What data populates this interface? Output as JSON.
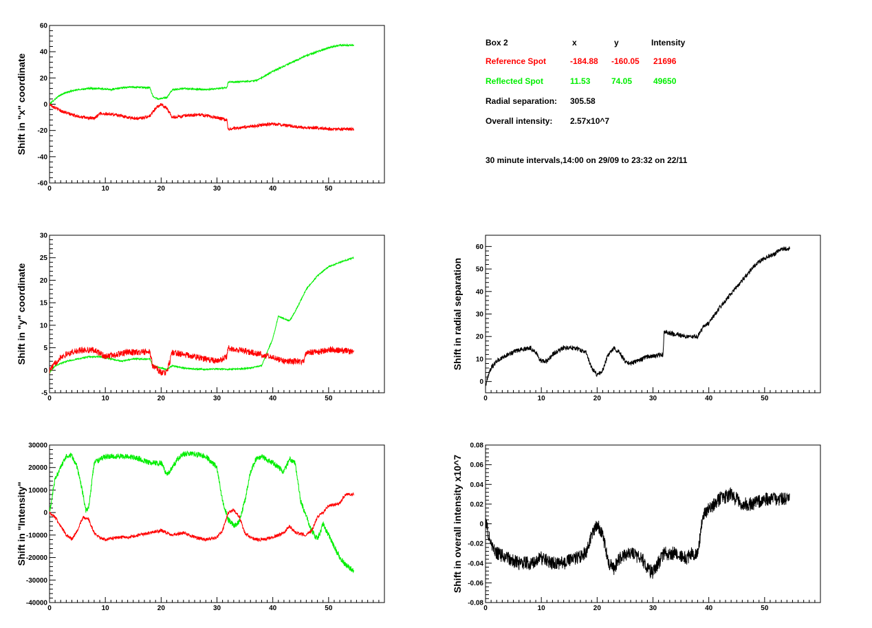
{
  "info": {
    "box_label": "Box 2",
    "col_x": "x",
    "col_y": "y",
    "col_intensity": "Intensity",
    "reference": {
      "label": "Reference Spot",
      "x": "-184.88",
      "y": "-160.05",
      "intensity": "21696"
    },
    "reflected": {
      "label": "Reflected Spot",
      "x": "11.53",
      "y": "74.05",
      "intensity": "49650"
    },
    "radial_label": "Radial separation:",
    "radial_value": "305.58",
    "overall_label": "Overall intensity:",
    "overall_value": "2.57x10^7",
    "interval_text": "30 minute intervals,14:00 on 29/09 to 23:32 on 22/11"
  },
  "colors": {
    "reference": "#ff0000",
    "reflected": "#00ee00",
    "single": "#000000"
  },
  "chart_data": [
    {
      "id": "shift-x",
      "type": "line",
      "ylabel": "Shift in \"x\" coordinate",
      "xlim": [
        0,
        60
      ],
      "ylim": [
        -60,
        60
      ],
      "xticks": [
        0,
        10,
        20,
        30,
        40,
        50
      ],
      "yticks": [
        -60,
        -40,
        -20,
        0,
        20,
        40,
        60
      ],
      "series": [
        {
          "color": "reflected",
          "noise": 0.6,
          "x": [
            0,
            1,
            2,
            3,
            5,
            7,
            9,
            11,
            12,
            14,
            16,
            18,
            18.5,
            19.5,
            21,
            22,
            24,
            26,
            28,
            30,
            31.8,
            32,
            34,
            37,
            38,
            40,
            42,
            44,
            46,
            48,
            50,
            52,
            54.5
          ],
          "y": [
            0,
            4,
            7,
            9,
            11,
            12,
            12,
            11,
            12,
            13,
            13,
            12.5,
            6,
            4,
            5,
            11,
            12,
            11.5,
            11,
            12,
            12.5,
            17,
            17,
            18,
            20,
            25,
            29,
            33,
            37,
            40,
            43,
            45,
            45
          ]
        },
        {
          "color": "reference",
          "noise": 1.2,
          "x": [
            0,
            2,
            4,
            6,
            8,
            9,
            12,
            14,
            16,
            18,
            19,
            20,
            21,
            22,
            24,
            27,
            30,
            31.8,
            32,
            34,
            36,
            38,
            40,
            42,
            44,
            46,
            48,
            50,
            52,
            54.5
          ],
          "y": [
            0,
            -5,
            -8,
            -10,
            -11,
            -7,
            -8,
            -10,
            -11,
            -9,
            -3,
            0,
            -3,
            -10,
            -9,
            -8,
            -10,
            -12,
            -19,
            -18,
            -17,
            -16,
            -15,
            -16,
            -17,
            -18,
            -18,
            -19,
            -19,
            -19
          ]
        }
      ]
    },
    {
      "id": "shift-y",
      "type": "line",
      "ylabel": "Shift in \"y\" coordinate",
      "xlim": [
        0,
        60
      ],
      "ylim": [
        -5,
        30
      ],
      "xticks": [
        0,
        10,
        20,
        30,
        40,
        50
      ],
      "yticks": [
        -5,
        0,
        5,
        10,
        15,
        20,
        25,
        30
      ],
      "series": [
        {
          "color": "reflected",
          "noise": 0.15,
          "x": [
            0,
            1,
            3,
            5,
            7,
            9,
            11,
            13,
            15,
            18,
            18.5,
            20,
            21,
            22,
            24,
            26,
            28,
            30,
            32,
            34,
            36,
            38,
            40,
            41,
            43,
            44,
            46,
            48,
            50,
            52,
            54.5
          ],
          "y": [
            -0.5,
            1,
            2,
            2.5,
            3,
            3,
            2.5,
            2,
            2.5,
            2.5,
            1,
            0.5,
            0.2,
            1,
            0.5,
            0.3,
            0.2,
            0.3,
            0.2,
            0.3,
            0.5,
            1,
            7,
            12,
            11,
            13,
            18,
            21,
            23,
            24,
            25
          ]
        },
        {
          "color": "reference",
          "noise": 0.7,
          "x": [
            0,
            2,
            4,
            6,
            8,
            10,
            12,
            14,
            16,
            18,
            18.5,
            20,
            21,
            22,
            24,
            26,
            28,
            30,
            31.8,
            32,
            34,
            36,
            38,
            40,
            42,
            44,
            45.5,
            46,
            48,
            50,
            52,
            54.5
          ],
          "y": [
            0,
            3,
            4,
            4.5,
            4.5,
            3,
            3.5,
            4,
            4,
            4,
            1,
            -0.5,
            -0.5,
            4,
            3.5,
            3,
            2.5,
            2,
            3,
            5,
            4.5,
            4,
            3.5,
            3,
            2,
            2,
            2,
            4,
            4,
            4.5,
            4.5,
            4
          ]
        }
      ]
    },
    {
      "id": "shift-radial",
      "type": "line",
      "ylabel": "Shift in radial separation",
      "xlim": [
        0,
        60
      ],
      "ylim": [
        -5,
        65
      ],
      "xticks": [
        0,
        10,
        20,
        30,
        40,
        50
      ],
      "yticks": [
        0,
        10,
        20,
        30,
        40,
        50,
        60
      ],
      "series": [
        {
          "color": "single",
          "noise": 1.0,
          "x": [
            0,
            0.5,
            1,
            2,
            4,
            6,
            8,
            9,
            10,
            11,
            12,
            14,
            16,
            18,
            19,
            20,
            21,
            22,
            23,
            24,
            25,
            26,
            28,
            29,
            31.8,
            32,
            34,
            36,
            38,
            39,
            40,
            42,
            44,
            46,
            48,
            50,
            52,
            53,
            54.5
          ],
          "y": [
            -2,
            3,
            6,
            9,
            12,
            14,
            15,
            13,
            9,
            9,
            12,
            15,
            15,
            13,
            6,
            3,
            5,
            12,
            15,
            13,
            9,
            8,
            10,
            11,
            12,
            22,
            21,
            20,
            20,
            24,
            26,
            33,
            39,
            45,
            51,
            55,
            57,
            59,
            59
          ]
        }
      ]
    },
    {
      "id": "shift-intensity",
      "type": "line",
      "ylabel": "Shift in \"Intensity\"",
      "xlim": [
        0,
        60
      ],
      "ylim": [
        -40000,
        30000
      ],
      "xticks": [
        0,
        10,
        20,
        30,
        40,
        50
      ],
      "yticks": [
        -40000,
        -30000,
        -20000,
        -10000,
        0,
        10000,
        20000,
        30000
      ],
      "series": [
        {
          "color": "reflected",
          "noise": 1200,
          "x": [
            0,
            1,
            2,
            3,
            4,
            5,
            6,
            6.5,
            7,
            8,
            10,
            12,
            14,
            16,
            18,
            19,
            20,
            21,
            22,
            23,
            24,
            26,
            28,
            30,
            31,
            32,
            33,
            34,
            35,
            36,
            37,
            38,
            40,
            42,
            43,
            44,
            45,
            46,
            47,
            48,
            49,
            50,
            51,
            52,
            53,
            54.5
          ],
          "y": [
            0,
            15000,
            20000,
            25000,
            25000,
            20000,
            8000,
            1000,
            2000,
            22000,
            25000,
            25000,
            25000,
            24000,
            22000,
            22000,
            22000,
            17000,
            20000,
            24000,
            26000,
            26000,
            25000,
            20000,
            5000,
            -3000,
            -6000,
            -4000,
            5000,
            18000,
            24000,
            25000,
            22000,
            18000,
            24000,
            22000,
            5000,
            -2000,
            -8000,
            -12000,
            -5000,
            -10000,
            -15000,
            -20000,
            -23000,
            -26000
          ]
        },
        {
          "color": "reference",
          "noise": 700,
          "x": [
            0,
            1,
            2,
            3,
            4,
            5,
            6,
            7,
            8,
            9,
            10,
            12,
            14,
            16,
            18,
            20,
            21,
            22,
            24,
            26,
            28,
            30,
            31,
            32,
            33,
            34,
            35,
            36,
            37,
            38,
            40,
            42,
            43,
            44,
            46,
            47,
            48,
            49,
            50,
            52,
            53,
            54.5
          ],
          "y": [
            0,
            -2000,
            -6000,
            -10000,
            -12000,
            -8000,
            -2000,
            -3000,
            -9000,
            -11000,
            -12000,
            -11000,
            -11000,
            -10000,
            -9000,
            -8000,
            -9000,
            -10000,
            -9000,
            -11000,
            -12000,
            -11000,
            -8000,
            0,
            1000,
            -2000,
            -9000,
            -11000,
            -12000,
            -12000,
            -11000,
            -9000,
            -6000,
            -9000,
            -10000,
            -8000,
            -2000,
            0,
            3000,
            4000,
            8000,
            8000
          ]
        }
      ]
    },
    {
      "id": "shift-overall-intensity",
      "type": "line",
      "ylabel": "Shift in overall intensity x10^7",
      "xlim": [
        0,
        60
      ],
      "ylim": [
        -0.08,
        0.08
      ],
      "xticks": [
        0,
        10,
        20,
        30,
        40,
        50
      ],
      "yticks": [
        -0.08,
        -0.06,
        -0.04,
        -0.02,
        0,
        0.02,
        0.04,
        0.06,
        0.08
      ],
      "series": [
        {
          "color": "single",
          "noise": 0.007,
          "x": [
            0,
            0.5,
            1,
            2,
            4,
            6,
            8,
            10,
            12,
            14,
            16,
            18,
            19,
            20,
            21,
            22,
            23,
            24,
            26,
            28,
            29,
            30,
            31,
            32,
            34,
            36,
            37,
            38,
            38.5,
            39,
            40,
            42,
            44,
            46,
            48,
            50,
            52,
            54.5
          ],
          "y": [
            0.005,
            -0.01,
            -0.02,
            -0.03,
            -0.035,
            -0.04,
            -0.04,
            -0.035,
            -0.04,
            -0.04,
            -0.035,
            -0.03,
            -0.01,
            0.0,
            -0.01,
            -0.04,
            -0.045,
            -0.035,
            -0.03,
            -0.035,
            -0.045,
            -0.05,
            -0.04,
            -0.03,
            -0.03,
            -0.035,
            -0.03,
            -0.03,
            -0.01,
            0.01,
            0.015,
            0.025,
            0.03,
            0.02,
            0.02,
            0.025,
            0.025,
            0.025
          ]
        }
      ]
    }
  ]
}
